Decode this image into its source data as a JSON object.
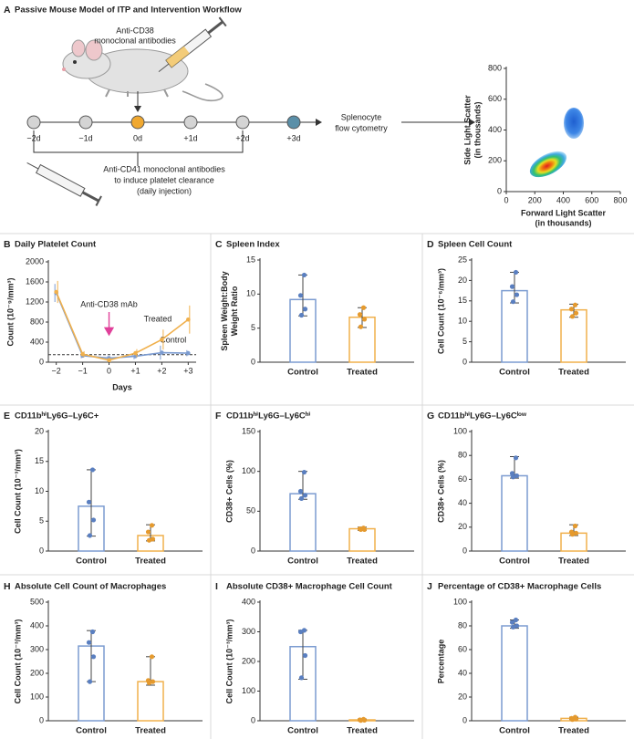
{
  "workflow": {
    "panel": "A",
    "title": "Passive Mouse Model of ITP and Intervention Workflow",
    "top_annotation": [
      "Anti-CD38",
      "monoclonal antibodies"
    ],
    "timeline": [
      "−2d",
      "−1d",
      "0d",
      "+1d",
      "+2d",
      "+3d"
    ],
    "assay": [
      "Splenocyte",
      "flow cytometry"
    ],
    "bottom_annotation": [
      "Anti-CD41 monoclonal antibodies",
      "to induce platelet clearance",
      "(daily injection)"
    ]
  },
  "chart_data": [
    {
      "type": "density",
      "xlabel": [
        "Forward Light Scatter",
        "(in thousands)"
      ],
      "ylabel": [
        "Side Light Scatter",
        "(in thousands)"
      ],
      "xlim": [
        0,
        800
      ],
      "xticks": [
        0,
        200,
        400,
        600,
        800
      ],
      "ylim": [
        0,
        800
      ],
      "yticks": [
        0,
        200,
        400,
        600,
        800
      ]
    },
    {
      "type": "line",
      "panel": "B",
      "title": "Daily Platelet Count",
      "xlabel": "Days",
      "ylabel": [
        "Count (10⁻⁹/mm³)"
      ],
      "x": [
        -2,
        -1,
        0,
        1,
        2,
        3
      ],
      "xlim": [
        -2.3,
        3.3
      ],
      "xticks": [
        {
          "value": -2,
          "label": "−2"
        },
        {
          "value": -1,
          "label": "−1"
        },
        0,
        {
          "value": 1,
          "label": "+1"
        },
        {
          "value": 2,
          "label": "+2"
        },
        {
          "value": 3,
          "label": "+3"
        }
      ],
      "ylim": [
        0,
        2000
      ],
      "yticks": [
        0,
        400,
        800,
        1200,
        1600,
        2000
      ],
      "reference_line": 150,
      "annotation": "Anti-CD38 mAb",
      "annotation_x": 0,
      "series": [
        {
          "name": "Control",
          "color": "#7b9bd0",
          "values": [
            1380,
            130,
            80,
            120,
            190,
            180
          ],
          "error": [
            180,
            50,
            40,
            60,
            140,
            60
          ]
        },
        {
          "name": "Treated",
          "color": "#f0b04c",
          "values": [
            1400,
            160,
            40,
            180,
            450,
            850
          ],
          "error": [
            220,
            60,
            40,
            80,
            200,
            280
          ]
        }
      ]
    },
    {
      "type": "bar",
      "panel": "C",
      "title": "Spleen Index",
      "ylabel": [
        "Spleen Weight:Body",
        "Weight Ratio"
      ],
      "categories": [
        "Control",
        "Treated"
      ],
      "colors": [
        "#7b9bd0",
        "#f0b04c"
      ],
      "point_colors": [
        "#5a7fc0",
        "#e59a2e"
      ],
      "values": [
        9.2,
        6.6
      ],
      "err_low": [
        6.8,
        5.1
      ],
      "err_high": [
        12.8,
        8.0
      ],
      "points": [
        [
          12.8,
          9.8,
          7.8,
          6.9
        ],
        [
          8.0,
          7.0,
          6.3,
          5.2
        ]
      ],
      "ylim": [
        0,
        15
      ],
      "yticks": [
        0,
        5,
        10,
        15
      ]
    },
    {
      "type": "bar",
      "panel": "D",
      "title": "Spleen Cell Count",
      "ylabel": [
        "Cell Count (10⁻⁶/mm³)"
      ],
      "categories": [
        "Control",
        "Treated"
      ],
      "colors": [
        "#7b9bd0",
        "#f0b04c"
      ],
      "point_colors": [
        "#5a7fc0",
        "#e59a2e"
      ],
      "values": [
        17.5,
        12.8
      ],
      "err_low": [
        14.5,
        11.0
      ],
      "err_high": [
        22,
        14.2
      ],
      "points": [
        [
          22,
          18.5,
          16.5,
          14.8
        ],
        [
          14,
          13,
          12,
          11.2
        ]
      ],
      "ylim": [
        0,
        25
      ],
      "yticks": [
        0,
        5,
        10,
        15,
        20,
        25
      ]
    },
    {
      "type": "bar",
      "panel": "E",
      "title": "CD11bʰⁱLy6G–Ly6C+",
      "ylabel": [
        "Cell Count (10⁻³/mm³)"
      ],
      "categories": [
        "Control",
        "Treated"
      ],
      "colors": [
        "#7b9bd0",
        "#f0b04c"
      ],
      "point_colors": [
        "#5a7fc0",
        "#e59a2e"
      ],
      "values": [
        7.5,
        2.6
      ],
      "err_low": [
        2.5,
        1.7
      ],
      "err_high": [
        13.6,
        4.4
      ],
      "points": [
        [
          13.6,
          8.2,
          5.2,
          2.6
        ],
        [
          4.3,
          3.2,
          2.0,
          1.8
        ]
      ],
      "ylim": [
        0,
        20
      ],
      "yticks": [
        0,
        5,
        10,
        15,
        20
      ]
    },
    {
      "type": "bar",
      "panel": "F",
      "title": "CD11bʰⁱLy6G–Ly6Cʰⁱ",
      "ylabel": [
        "CD38+ Cells (%)"
      ],
      "categories": [
        "Control",
        "Treated"
      ],
      "colors": [
        "#7b9bd0",
        "#f0b04c"
      ],
      "point_colors": [
        "#5a7fc0",
        "#e59a2e"
      ],
      "values": [
        72,
        28
      ],
      "err_low": [
        65,
        26
      ],
      "err_high": [
        100,
        30
      ],
      "points": [
        [
          99,
          75,
          70,
          66
        ],
        [
          29,
          28,
          27,
          27
        ]
      ],
      "ylim": [
        0,
        150
      ],
      "yticks": [
        0,
        50,
        100,
        150
      ]
    },
    {
      "type": "bar",
      "panel": "G",
      "title": "CD11bʰⁱLy6G–Ly6Cˡᵒʷ",
      "ylabel": [
        "CD38+ Cells (%)"
      ],
      "categories": [
        "Control",
        "Treated"
      ],
      "colors": [
        "#7b9bd0",
        "#f0b04c"
      ],
      "point_colors": [
        "#5a7fc0",
        "#e59a2e"
      ],
      "values": [
        63,
        15
      ],
      "err_low": [
        61,
        13
      ],
      "err_high": [
        79,
        22
      ],
      "points": [
        [
          78,
          65,
          63,
          62
        ],
        [
          21,
          16,
          15,
          14
        ]
      ],
      "ylim": [
        0,
        100
      ],
      "yticks": [
        0,
        20,
        40,
        60,
        80,
        100
      ]
    },
    {
      "type": "bar",
      "panel": "H",
      "title": "Absolute Cell Count of Macrophages",
      "ylabel": [
        "Cell Count (10⁻³/mm³)"
      ],
      "categories": [
        "Control",
        "Treated"
      ],
      "colors": [
        "#7b9bd0",
        "#f0b04c"
      ],
      "point_colors": [
        "#5a7fc0",
        "#e59a2e"
      ],
      "values": [
        315,
        165
      ],
      "err_low": [
        165,
        150
      ],
      "err_high": [
        380,
        270
      ],
      "points": [
        [
          375,
          330,
          270,
          165
        ],
        [
          270,
          170,
          165,
          160
        ]
      ],
      "ylim": [
        0,
        500
      ],
      "yticks": [
        0,
        100,
        200,
        300,
        400,
        500
      ]
    },
    {
      "type": "bar",
      "panel": "I",
      "title": "Absolute CD38+ Macrophage Cell Count",
      "ylabel": [
        "Cell Count (10⁻³/mm³)"
      ],
      "categories": [
        "Control",
        "Treated"
      ],
      "colors": [
        "#7b9bd0",
        "#f0b04c"
      ],
      "point_colors": [
        "#5a7fc0",
        "#e59a2e"
      ],
      "values": [
        250,
        3
      ],
      "err_low": [
        140,
        1
      ],
      "err_high": [
        305,
        6
      ],
      "points": [
        [
          305,
          300,
          220,
          145
        ],
        [
          5,
          3,
          2,
          1
        ]
      ],
      "ylim": [
        0,
        400
      ],
      "yticks": [
        0,
        100,
        200,
        300,
        400
      ]
    },
    {
      "type": "bar",
      "panel": "J",
      "title": "Percentage of CD38+ Macrophage Cells",
      "ylabel": [
        "Percentage"
      ],
      "categories": [
        "Control",
        "Treated"
      ],
      "colors": [
        "#7b9bd0",
        "#f0b04c"
      ],
      "point_colors": [
        "#5a7fc0",
        "#e59a2e"
      ],
      "values": [
        80,
        2
      ],
      "err_low": [
        78,
        1
      ],
      "err_high": [
        85,
        3
      ],
      "points": [
        [
          85,
          83,
          80,
          79
        ],
        [
          3,
          2,
          1.5,
          1
        ]
      ],
      "ylim": [
        0,
        100
      ],
      "yticks": [
        0,
        20,
        40,
        60,
        80,
        100
      ]
    }
  ]
}
